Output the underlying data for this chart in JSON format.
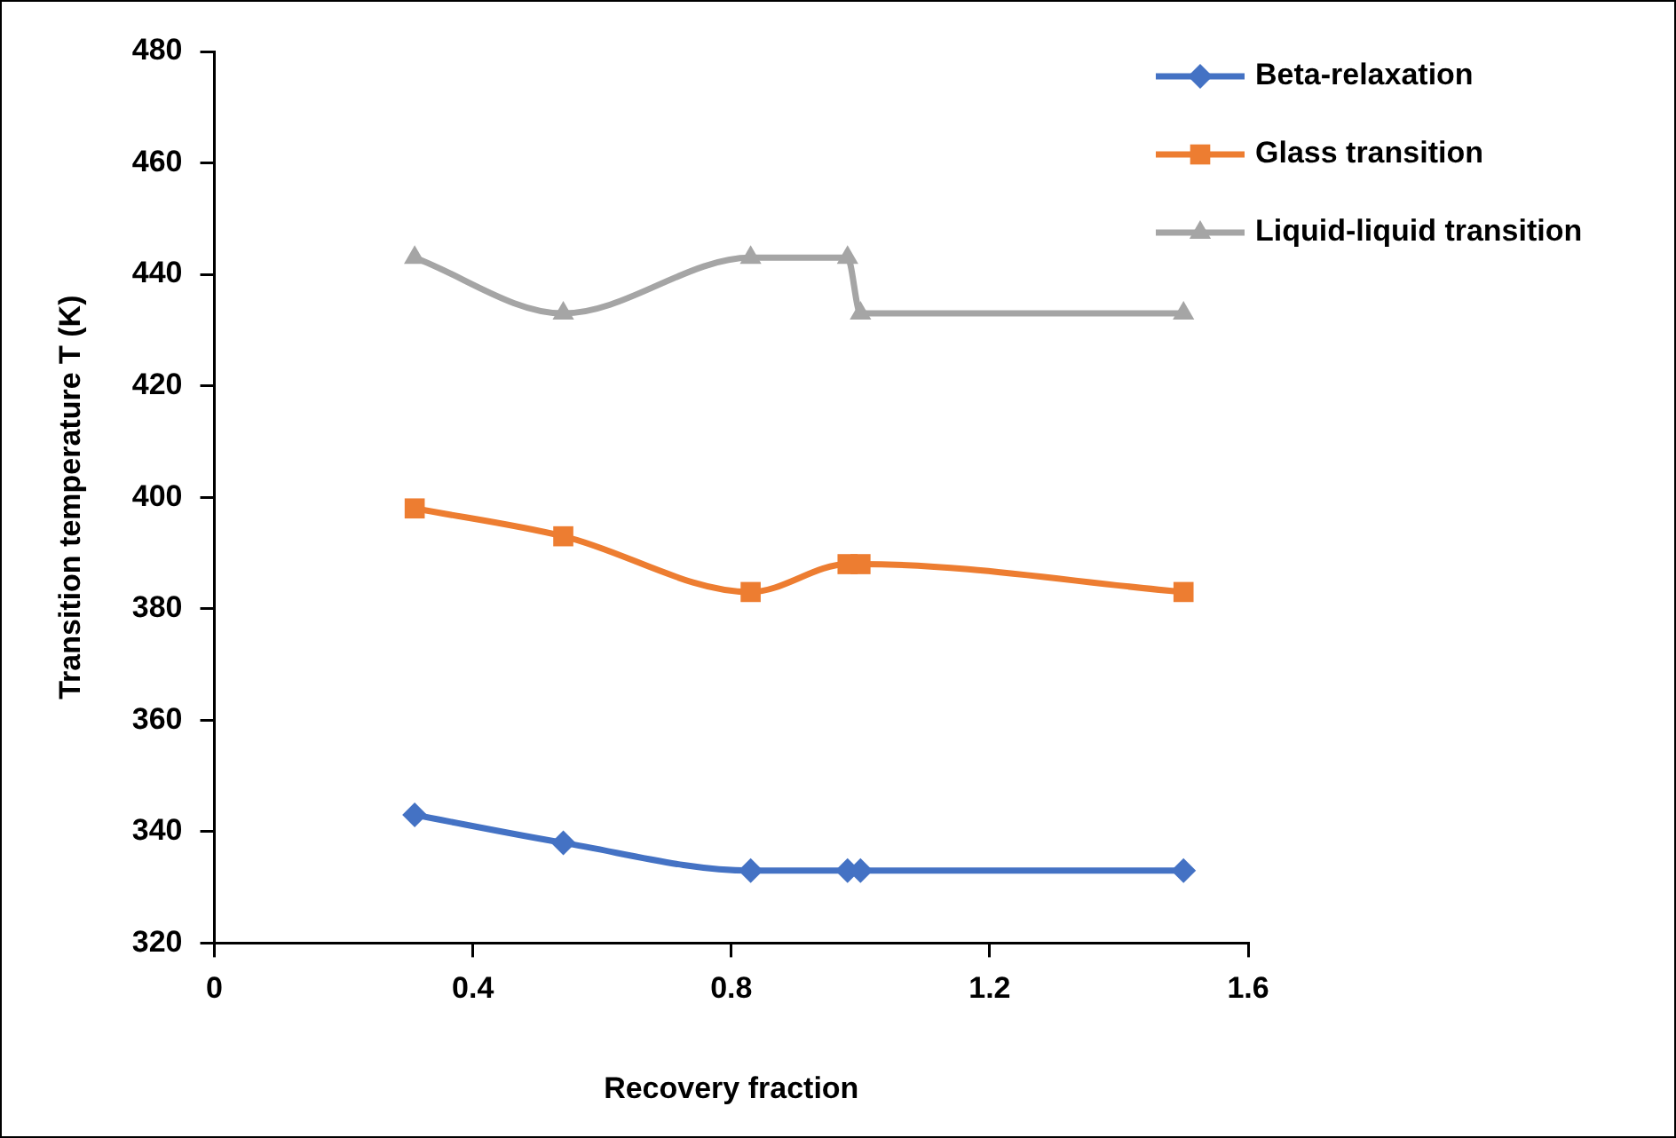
{
  "chart_data": {
    "type": "line",
    "xlabel": "Recovery fraction",
    "ylabel": "Transition temperature T (K)",
    "xlim": [
      0,
      1.6
    ],
    "xticks": [
      0,
      0.4,
      0.8,
      1.2,
      1.6
    ],
    "ylim": [
      320,
      480
    ],
    "yticks": [
      320,
      340,
      360,
      380,
      400,
      420,
      440,
      460,
      480
    ],
    "grid": false,
    "legend": "top right",
    "series": [
      {
        "name": "Beta-relaxation",
        "color": "#4472c4",
        "marker": "diamond",
        "x": [
          0.31,
          0.54,
          0.83,
          0.98,
          1.0,
          1.5
        ],
        "values": [
          343,
          338,
          333,
          333,
          333,
          333
        ]
      },
      {
        "name": "Glass transition",
        "color": "#ed7d31",
        "marker": "square",
        "x": [
          0.31,
          0.54,
          0.83,
          0.98,
          1.0,
          1.5
        ],
        "values": [
          398,
          393,
          383,
          388,
          388,
          383
        ]
      },
      {
        "name": "Liquid-liquid transition",
        "color": "#a5a5a5",
        "marker": "triangle",
        "x": [
          0.31,
          0.54,
          0.83,
          0.98,
          1.0,
          1.5
        ],
        "values": [
          443,
          433,
          443,
          443,
          433,
          433
        ]
      }
    ]
  }
}
